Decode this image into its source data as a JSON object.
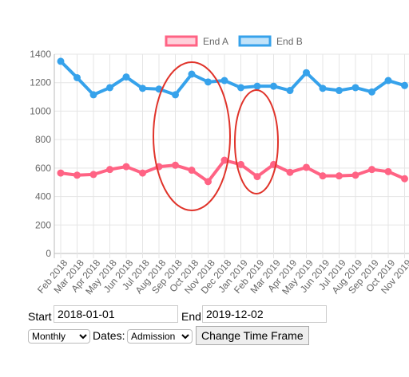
{
  "chart_data": {
    "type": "line",
    "categories": [
      "Feb 2018",
      "Mar 2018",
      "Apr 2018",
      "May 2018",
      "Jun 2018",
      "Jul 2018",
      "Aug 2018",
      "Sep 2018",
      "Oct 2018",
      "Nov 2018",
      "Dec 2018",
      "Jan 2019",
      "Feb 2019",
      "Mar 2019",
      "Apr 2019",
      "May 2019",
      "Jun 2019",
      "Jul 2019",
      "Aug 2019",
      "Sep 2019",
      "Oct 2019",
      "Nov 2019"
    ],
    "series": [
      {
        "name": "End A",
        "color": "#ff6384",
        "values": [
          565,
          550,
          555,
          590,
          610,
          565,
          610,
          620,
          585,
          505,
          655,
          625,
          540,
          625,
          570,
          605,
          545,
          545,
          550,
          590,
          575,
          525
        ]
      },
      {
        "name": "End B",
        "color": "#36a2eb",
        "values": [
          1350,
          1235,
          1115,
          1165,
          1240,
          1160,
          1155,
          1115,
          1260,
          1205,
          1215,
          1165,
          1175,
          1175,
          1145,
          1270,
          1160,
          1145,
          1165,
          1135,
          1215,
          1180
        ]
      }
    ],
    "ylim": [
      0,
      1400
    ],
    "yticks": [
      0,
      200,
      400,
      600,
      800,
      1000,
      1200,
      1400
    ],
    "grid": true,
    "legend": "top"
  },
  "form": {
    "start_label": "Start",
    "start_value": "2018-01-01",
    "end_label": "End",
    "end_value": "2019-12-02",
    "interval": "Monthly",
    "dates_label": "Dates:",
    "dates_value": "Admission",
    "button": "Change Time Frame"
  }
}
